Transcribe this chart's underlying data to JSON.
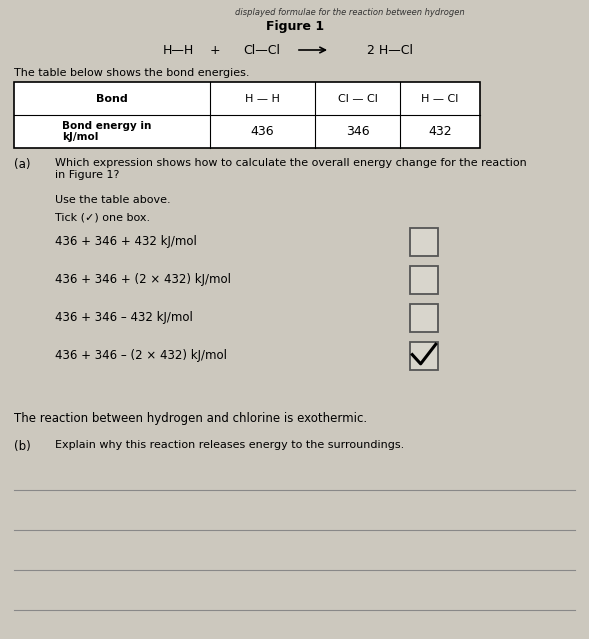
{
  "background_color": "#ccc8be",
  "title_top": "displayed formulae for the reaction between hydrogen",
  "figure_label": "Figure 1",
  "table_intro": "The table below shows the bond energies.",
  "table_headers": [
    "Bond",
    "H — H",
    "Cl — Cl",
    "H — Cl"
  ],
  "table_row1_label": "Bond energy in\nkJ/mol",
  "table_values": [
    "436",
    "346",
    "432"
  ],
  "part_a_label": "(a)",
  "part_a_text": "Which expression shows how to calculate the overall energy change for the reaction\nin Figure 1?",
  "use_table": "Use the table above.",
  "tick_instruction": "Tick (✓) one box.",
  "options": [
    "436 + 346 + 432 kJ/mol",
    "436 + 346 + (2 × 432) kJ/mol",
    "436 + 346 – 432 kJ/mol",
    "436 + 346 – (2 × 432) kJ/mol"
  ],
  "ticked_option": 3,
  "exothermic_text": "The reaction between hydrogen and chlorine is exothermic.",
  "part_b_label": "(b)",
  "part_b_text": "Explain why this reaction releases energy to the surroundings.",
  "num_answer_lines": 4,
  "eq_hh": "H—H",
  "eq_plus": "+",
  "eq_clcl": "Cl—Cl",
  "eq_arrow": "→",
  "eq_2hcl": "2 H—Cl"
}
